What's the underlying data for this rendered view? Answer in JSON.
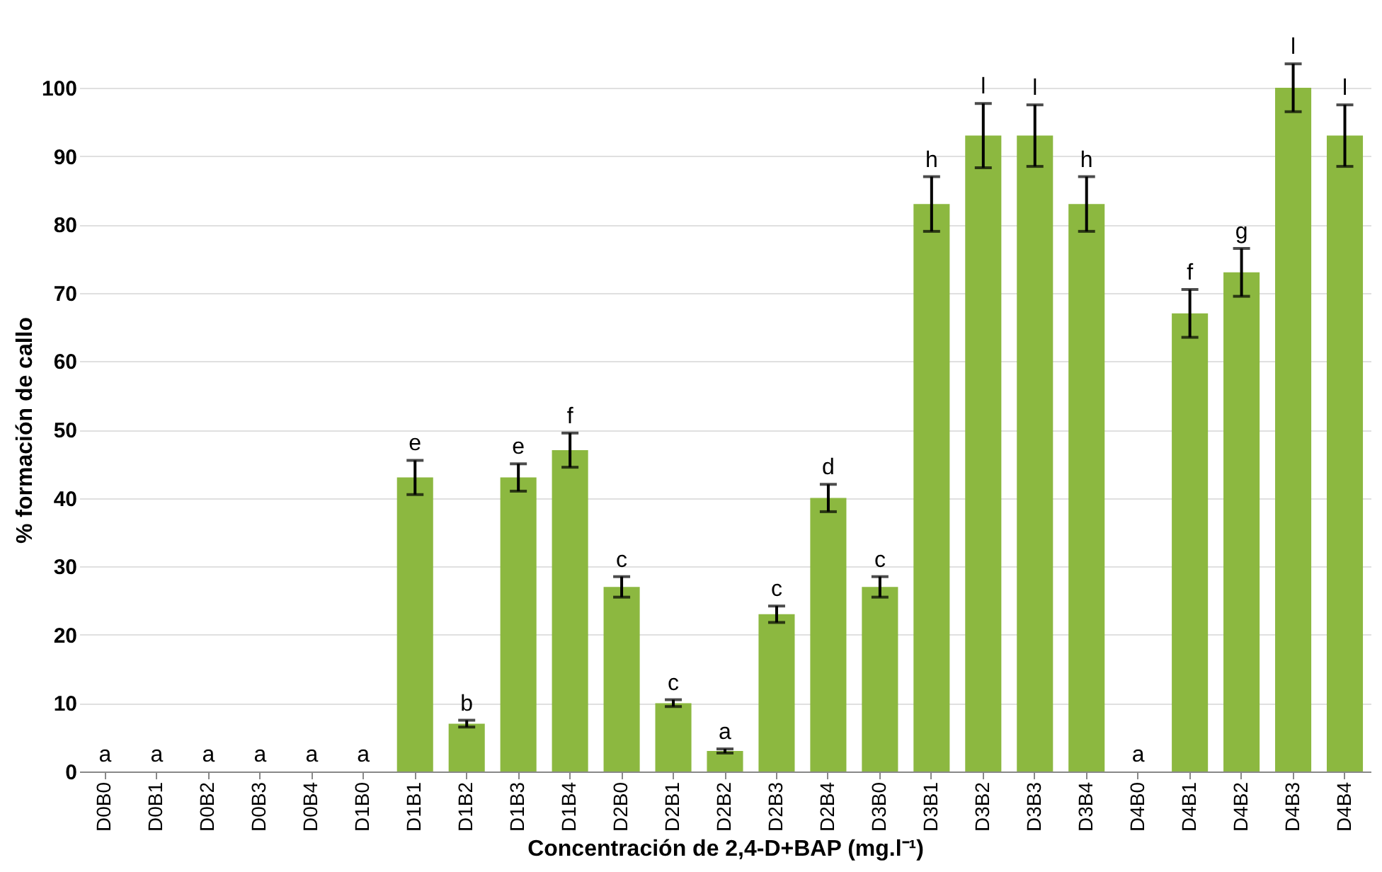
{
  "chart_data": {
    "type": "bar",
    "xlabel": "Concentración  de 2,4-D+BAP (mg.l⁻¹)",
    "ylabel": "% formación de callo",
    "categories": [
      "D0B0",
      "D0B1",
      "D0B2",
      "D0B3",
      "D0B4",
      "D1B0",
      "D1B1",
      "D1B2",
      "D1B3",
      "D1B4",
      "D2B0",
      "D2B1",
      "D2B2",
      "D2B3",
      "D2B4",
      "D3B0",
      "D3B1",
      "D3B2",
      "D3B3",
      "D3B4",
      "D4B0",
      "D4B1",
      "D4B2",
      "D4B3",
      "D4B4"
    ],
    "values": [
      0,
      0,
      0,
      0,
      0,
      0,
      43,
      7,
      43,
      47,
      27,
      10,
      3,
      23,
      40,
      27,
      83,
      93,
      93,
      83,
      0,
      67,
      73,
      100,
      93
    ],
    "errors": [
      null,
      null,
      null,
      null,
      null,
      null,
      2.5,
      0.5,
      2,
      2.5,
      1.5,
      0.5,
      0.3,
      1.2,
      2,
      1.5,
      4,
      4.7,
      4.5,
      4,
      null,
      3.5,
      3.5,
      3.5,
      4.5
    ],
    "value_labels": [
      "a",
      "a",
      "a",
      "a",
      "a",
      "a",
      "e",
      "b",
      "e",
      "f",
      "c",
      "c",
      "a",
      "c",
      "d",
      "c",
      "h",
      "l",
      "l",
      "h",
      "a",
      "f",
      "g",
      "l",
      "l"
    ],
    "color": "#8cb840",
    "ylim": [
      0,
      100
    ],
    "yticks": [
      0,
      10,
      20,
      30,
      40,
      50,
      60,
      70,
      80,
      90,
      100
    ],
    "grid": "y"
  }
}
